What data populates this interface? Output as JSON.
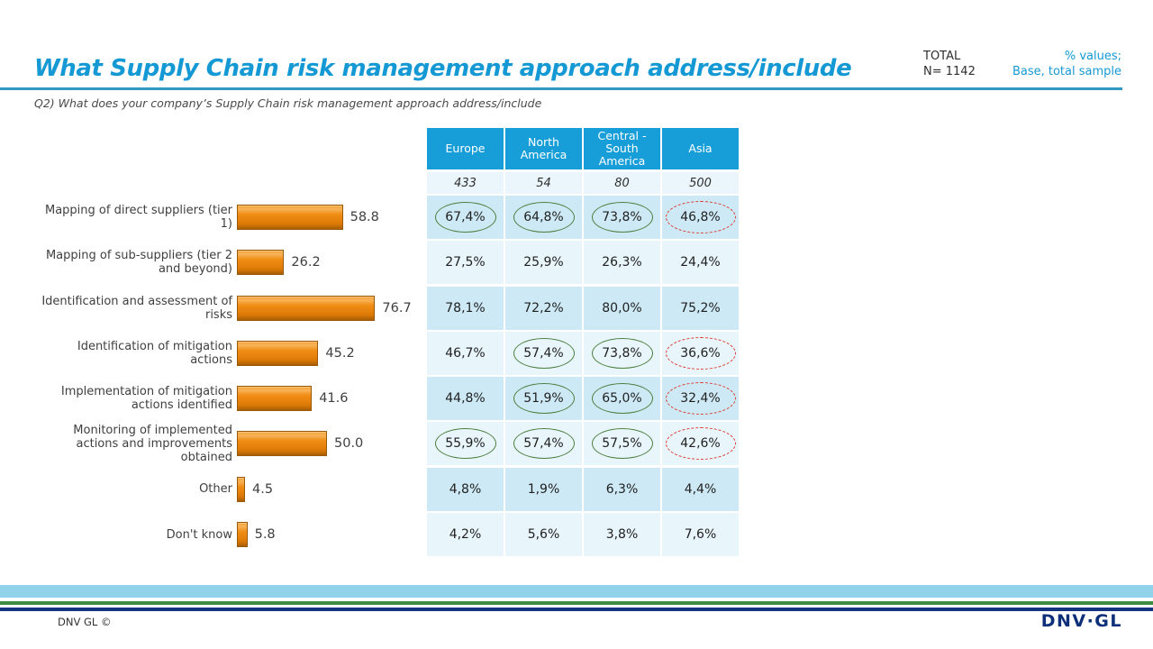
{
  "header": {
    "title": "What Supply Chain risk management approach address/include",
    "total_label": "TOTAL",
    "total_n": "N= 1142",
    "note_line1": "% values;",
    "note_line2": "Base, total sample",
    "question": "Q2) What does your company’s Supply Chain risk management approach address/include"
  },
  "chart_data": {
    "type": "bar",
    "orientation": "horizontal",
    "title": "What Supply Chain risk management approach address/include",
    "xlabel": "",
    "ylabel": "",
    "xlim": [
      0,
      100
    ],
    "grid": false,
    "bar_color": "#e8830d",
    "categories": [
      "Mapping of direct suppliers (tier 1)",
      "Mapping of sub-suppliers (tier 2 and beyond)",
      "Identification and assessment of risks",
      "Identification of mitigation actions",
      "Implementation of mitigation actions identified",
      "Monitoring of implemented actions and improvements obtained",
      "Other",
      "Don't know"
    ],
    "values": [
      58.8,
      26.2,
      76.7,
      45.2,
      41.6,
      50.0,
      4.5,
      5.8
    ],
    "display_values": [
      "58.8",
      "26.2",
      "76.7",
      "45.2",
      "41.6",
      "50.0",
      "4.5",
      "5.8"
    ]
  },
  "table": {
    "columns": [
      "Europe",
      "North America",
      "Central - South America",
      "Asia"
    ],
    "bases": [
      "433",
      "54",
      "80",
      "500"
    ],
    "rows": [
      {
        "values": [
          "67,4%",
          "64,8%",
          "73,8%",
          "46,8%"
        ],
        "marks": [
          "green",
          "green",
          "green",
          "red"
        ]
      },
      {
        "values": [
          "27,5%",
          "25,9%",
          "26,3%",
          "24,4%"
        ],
        "marks": [
          "none",
          "none",
          "none",
          "none"
        ]
      },
      {
        "values": [
          "78,1%",
          "72,2%",
          "80,0%",
          "75,2%"
        ],
        "marks": [
          "none",
          "none",
          "none",
          "none"
        ]
      },
      {
        "values": [
          "46,7%",
          "57,4%",
          "73,8%",
          "36,6%"
        ],
        "marks": [
          "none",
          "green",
          "green",
          "red"
        ]
      },
      {
        "values": [
          "44,8%",
          "51,9%",
          "65,0%",
          "32,4%"
        ],
        "marks": [
          "none",
          "green",
          "green",
          "red"
        ]
      },
      {
        "values": [
          "55,9%",
          "57,4%",
          "57,5%",
          "42,6%"
        ],
        "marks": [
          "green",
          "green",
          "green",
          "red"
        ]
      },
      {
        "values": [
          "4,8%",
          "1,9%",
          "6,3%",
          "4,4%"
        ],
        "marks": [
          "none",
          "none",
          "none",
          "none"
        ]
      },
      {
        "values": [
          "4,2%",
          "5,6%",
          "3,8%",
          "7,6%"
        ],
        "marks": [
          "none",
          "none",
          "none",
          "none"
        ]
      }
    ]
  },
  "footer": {
    "copyright": "DNV GL ©",
    "logo": "DNV·GL"
  },
  "colors": {
    "accent_blue": "#1599d4",
    "table_header_blue": "#179ed9",
    "row_dark": "#cde9f5",
    "row_light": "#e8f5fb",
    "bar_orange": "#e8830d",
    "circle_green": "#4c7e3e",
    "circle_red": "#dd3b30",
    "stripe_lightblue": "#90d3eb",
    "stripe_green": "#3e8c42",
    "stripe_navy": "#14337f"
  }
}
